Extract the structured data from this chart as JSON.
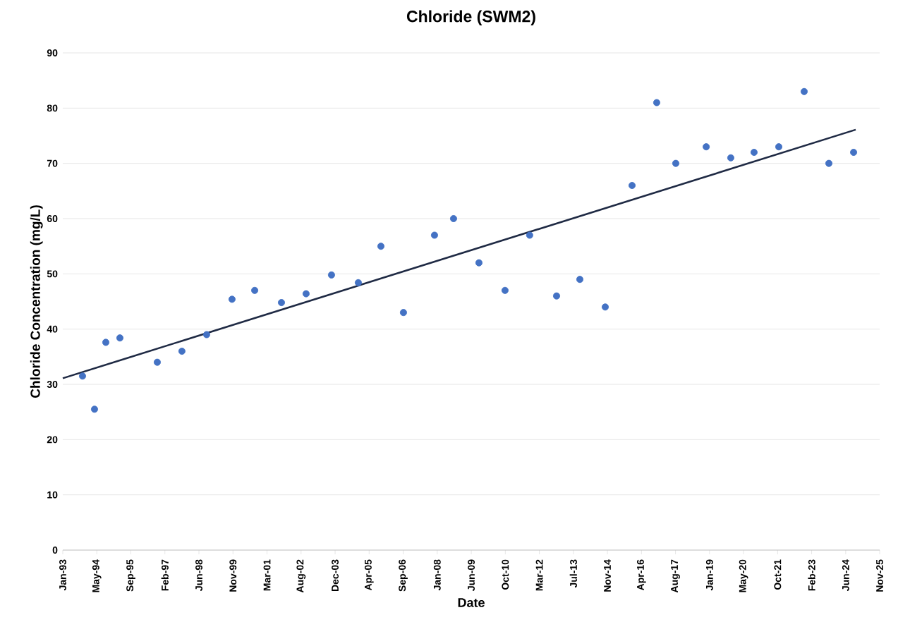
{
  "chart_data": {
    "type": "scatter",
    "title": "Chloride (SWM2)",
    "xlabel": "Date",
    "ylabel": "Chloride Concentration (mg/L)",
    "xlim": [
      "1993-01-01",
      "2025-11-08"
    ],
    "xticks": [
      {
        "value": "1993-01-01",
        "label": "Jan-93"
      },
      {
        "value": "1994-05-16",
        "label": "May-94"
      },
      {
        "value": "1995-09-28",
        "label": "Sep-95"
      },
      {
        "value": "1997-02-09",
        "label": "Feb-97"
      },
      {
        "value": "1998-06-24",
        "label": "Jun-98"
      },
      {
        "value": "1999-11-06",
        "label": "Nov-99"
      },
      {
        "value": "2001-03-20",
        "label": "Mar-01"
      },
      {
        "value": "2002-08-02",
        "label": "Aug-02"
      },
      {
        "value": "2003-12-15",
        "label": "Dec-03"
      },
      {
        "value": "2005-04-28",
        "label": "Apr-05"
      },
      {
        "value": "2006-09-10",
        "label": "Sep-06"
      },
      {
        "value": "2008-01-23",
        "label": "Jan-08"
      },
      {
        "value": "2009-06-06",
        "label": "Jun-09"
      },
      {
        "value": "2010-10-19",
        "label": "Oct-10"
      },
      {
        "value": "2012-03-02",
        "label": "Mar-12"
      },
      {
        "value": "2013-07-15",
        "label": "Jul-13"
      },
      {
        "value": "2014-11-27",
        "label": "Nov-14"
      },
      {
        "value": "2016-04-10",
        "label": "Apr-16"
      },
      {
        "value": "2017-08-23",
        "label": "Aug-17"
      },
      {
        "value": "2019-01-05",
        "label": "Jan-19"
      },
      {
        "value": "2020-05-19",
        "label": "May-20"
      },
      {
        "value": "2021-10-01",
        "label": "Oct-21"
      },
      {
        "value": "2023-02-13",
        "label": "Feb-23"
      },
      {
        "value": "2024-06-27",
        "label": "Jun-24"
      },
      {
        "value": "2025-11-08",
        "label": "Nov-25"
      }
    ],
    "ylim": [
      0,
      90
    ],
    "yticks": [
      0,
      10,
      20,
      30,
      40,
      50,
      60,
      70,
      80,
      90
    ],
    "grid": "y",
    "marker": "circle",
    "x": [
      "1993-10-18",
      "1994-04-12",
      "1994-09-25",
      "1995-04-20",
      "1996-10-20",
      "1997-10-17",
      "1998-10-15",
      "1999-10-23",
      "2000-09-20",
      "2001-10-18",
      "2002-10-15",
      "2003-10-23",
      "2004-11-20",
      "2005-10-18",
      "2006-09-14",
      "2007-12-14",
      "2008-09-19",
      "2009-09-27",
      "2010-10-15",
      "2011-10-12",
      "2012-11-10",
      "2013-10-18",
      "2014-10-26",
      "2015-11-24",
      "2016-11-20",
      "2017-08-27",
      "2018-11-17",
      "2019-11-13",
      "2020-10-20",
      "2021-10-18",
      "2022-10-26",
      "2023-10-24",
      "2024-10-21"
    ],
    "series": [
      {
        "color": "#4472c4",
        "values": [
          31.5,
          25.5,
          37.6,
          38.4,
          34,
          36,
          39,
          45.4,
          47,
          44.8,
          46.4,
          49.8,
          48.4,
          55,
          43,
          57,
          60,
          52,
          47,
          57,
          46,
          49,
          44,
          66,
          81,
          70,
          73,
          71,
          72,
          73,
          83,
          70,
          72
        ]
      },
      {
        "type": "line",
        "color": "#1f2a44",
        "x": [
          "1993-01-01",
          "2024-11-21"
        ],
        "values": [
          31.1,
          76.1
        ],
        "marker": "none"
      }
    ]
  }
}
